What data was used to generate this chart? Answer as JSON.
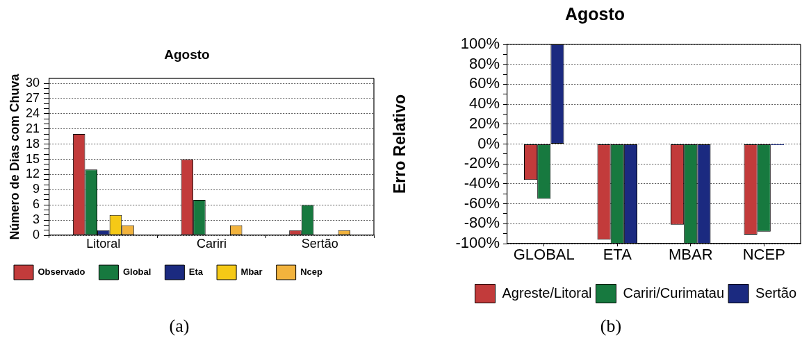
{
  "chart_data": [
    {
      "type": "bar",
      "title": "Agosto",
      "ylabel": "Número de Dias com Chuva",
      "categories": [
        "Litoral",
        "Cariri",
        "Sertão"
      ],
      "series": [
        {
          "name": "Observado",
          "color": "#c23b3b",
          "values": [
            20,
            15,
            1
          ]
        },
        {
          "name": "Global",
          "color": "#17793f",
          "values": [
            13,
            7,
            6
          ]
        },
        {
          "name": "Eta",
          "color": "#1b2a80",
          "values": [
            1,
            0,
            0
          ]
        },
        {
          "name": "Mbar",
          "color": "#f5c916",
          "values": [
            4,
            0,
            0
          ]
        },
        {
          "name": "Ncep",
          "color": "#f2b33d",
          "values": [
            2,
            2,
            1
          ]
        }
      ],
      "ylim": [
        0,
        31
      ],
      "yticks": [
        0,
        {
          "value": 1,
          "label": null
        },
        {
          "value": 2,
          "label": null
        },
        3,
        {
          "value": 4,
          "label": null
        },
        {
          "value": 5,
          "label": null
        },
        6,
        {
          "value": 7,
          "label": null
        },
        {
          "value": 8,
          "label": null
        },
        9,
        {
          "value": 10,
          "label": null
        },
        {
          "value": 11,
          "label": null
        },
        12,
        {
          "value": 13,
          "label": null
        },
        {
          "value": 14,
          "label": null
        },
        15,
        {
          "value": 16,
          "label": null
        },
        {
          "value": 17,
          "label": null
        },
        18,
        {
          "value": 19,
          "label": null
        },
        {
          "value": 20,
          "label": null
        },
        21,
        {
          "value": 22,
          "label": null
        },
        {
          "value": 23,
          "label": null
        },
        24,
        {
          "value": 25,
          "label": null
        },
        {
          "value": 26,
          "label": null
        },
        27,
        {
          "value": 28,
          "label": null
        },
        {
          "value": 29,
          "label": null
        },
        30
      ],
      "grid": "y",
      "legend": "bottom",
      "annotations": [
        "(a)"
      ]
    },
    {
      "type": "bar",
      "title": "Agosto",
      "ylabel": "Erro Relativo",
      "categories": [
        "GLOBAL",
        "ETA",
        "MBAR",
        "NCEP"
      ],
      "series": [
        {
          "name": "Agreste/Litoral",
          "color": "#c23b3b",
          "values": [
            -36,
            -96,
            -81,
            -91
          ]
        },
        {
          "name": "Cariri/Curimatau",
          "color": "#17793f",
          "values": [
            -55,
            -100,
            -100,
            -88
          ]
        },
        {
          "name": "Sertão",
          "color": "#1b2a80",
          "values": [
            100,
            -100,
            -100,
            -1
          ]
        }
      ],
      "ylim": [
        -100,
        100
      ],
      "yticks": [
        {
          "value": -100,
          "label": "-100%"
        },
        {
          "value": -90,
          "label": null
        },
        {
          "value": -80,
          "label": "-80%"
        },
        {
          "value": -70,
          "label": null
        },
        {
          "value": -60,
          "label": "-60%"
        },
        {
          "value": -50,
          "label": null
        },
        {
          "value": -40,
          "label": "-40%"
        },
        {
          "value": -30,
          "label": null
        },
        {
          "value": -20,
          "label": "-20%"
        },
        {
          "value": -10,
          "label": null
        },
        {
          "value": 0,
          "label": "0%"
        },
        {
          "value": 10,
          "label": null
        },
        {
          "value": 20,
          "label": "20%"
        },
        {
          "value": 30,
          "label": null
        },
        {
          "value": 40,
          "label": "40%"
        },
        {
          "value": 50,
          "label": null
        },
        {
          "value": 60,
          "label": "60%"
        },
        {
          "value": 70,
          "label": null
        },
        {
          "value": 80,
          "label": "80%"
        },
        {
          "value": 90,
          "label": null
        },
        {
          "value": 100,
          "label": "100%"
        }
      ],
      "grid": "y",
      "legend": "bottom",
      "annotations": [
        "(b)"
      ]
    }
  ]
}
